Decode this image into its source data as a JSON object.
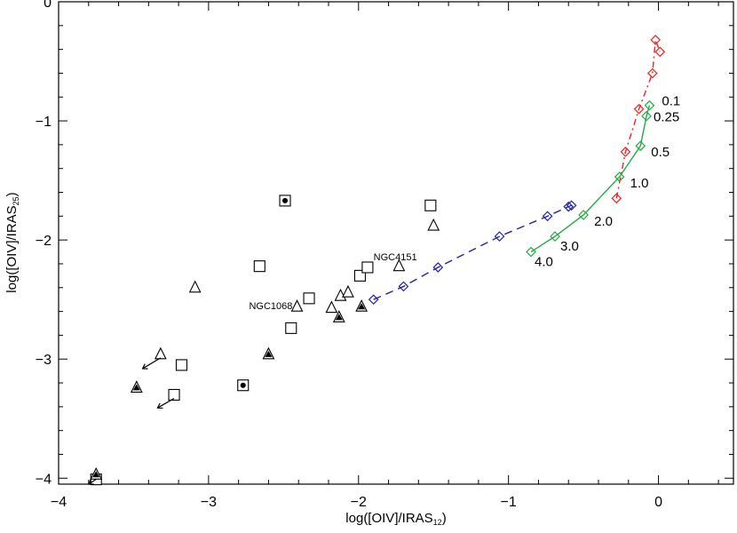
{
  "chart_data": {
    "type": "scatter",
    "xlabel": "log([OIV]/IRAS",
    "xlabel_sub": "12",
    "xlabel_end": ")",
    "ylabel": "log([OIV]/IRAS",
    "ylabel_sub": "25",
    "ylabel_end": ")",
    "xlim": [
      -4,
      0.5
    ],
    "ylim": [
      -4.05,
      0
    ],
    "xticks": [
      -4,
      -3,
      -2,
      -1,
      0
    ],
    "yticks": [
      0,
      -1,
      -2,
      -3,
      -4
    ],
    "xtick_labels": [
      "−4",
      "−3",
      "−2",
      "−1",
      "0"
    ],
    "ytick_labels": [
      "0",
      "−1",
      "−2",
      "−3",
      "−4"
    ],
    "grid": false,
    "squares": [
      [
        -2.66,
        -2.22
      ],
      [
        -2.33,
        -2.49
      ],
      [
        -2.45,
        -2.74
      ],
      [
        -1.99,
        -2.3
      ],
      [
        -1.94,
        -2.23
      ],
      [
        -1.52,
        -1.71
      ],
      [
        -3.18,
        -3.05
      ],
      [
        -3.23,
        -3.3
      ],
      [
        -3.75,
        -4.01
      ]
    ],
    "squares_filled": [
      [
        -2.49,
        -1.67
      ],
      [
        -2.77,
        -3.22
      ]
    ],
    "triangles": [
      [
        -3.09,
        -2.4
      ],
      [
        -2.41,
        -2.56
      ],
      [
        -2.18,
        -2.57
      ],
      [
        -2.12,
        -2.47
      ],
      [
        -2.07,
        -2.44
      ],
      [
        -1.73,
        -2.22
      ],
      [
        -1.5,
        -1.88
      ],
      [
        -3.32,
        -2.96
      ]
    ],
    "triangles_filled": [
      [
        -3.48,
        -3.24
      ],
      [
        -2.6,
        -2.96
      ],
      [
        -2.13,
        -2.65
      ],
      [
        -1.98,
        -2.56
      ],
      [
        -3.75,
        -3.97
      ]
    ],
    "upper_limits": [
      {
        "from": [
          -3.32,
          -2.99
        ],
        "to": [
          -3.44,
          -3.08
        ]
      },
      {
        "from": [
          -3.23,
          -3.33
        ],
        "to": [
          -3.34,
          -3.41
        ]
      },
      {
        "from": [
          -3.75,
          -4.01
        ],
        "to": [
          -3.8,
          -4.05
        ]
      }
    ],
    "annotations": [
      {
        "text": "NGC4151",
        "x": -1.9,
        "y": -2.17
      },
      {
        "text": "NGC1068",
        "x": -2.73,
        "y": -2.58
      }
    ],
    "series": [
      {
        "color": "#2222aa",
        "style": "dashed",
        "marker": "diamond",
        "x": [
          -1.9,
          -1.7,
          -1.47,
          -1.06,
          -0.74,
          -0.6,
          -0.58
        ],
        "y": [
          -2.5,
          -2.39,
          -2.23,
          -1.97,
          -1.8,
          -1.72,
          -1.71
        ]
      },
      {
        "color": "#22aa44",
        "style": "solid",
        "marker": "diamond",
        "x": [
          -0.85,
          -0.69,
          -0.5,
          -0.26,
          -0.12,
          -0.08,
          -0.06
        ],
        "y": [
          -2.1,
          -1.97,
          -1.79,
          -1.47,
          -1.21,
          -0.96,
          -0.87
        ],
        "labels": [
          "4.0",
          "3.0",
          "2.0",
          "1.0",
          "0.5",
          "0.25",
          "0.1"
        ]
      },
      {
        "color": "#ee2222",
        "style": "dashdot",
        "marker": "diamond",
        "x": [
          -0.28,
          -0.22,
          -0.13,
          -0.04,
          -0.02,
          0.01
        ],
        "y": [
          -1.65,
          -1.26,
          -0.9,
          -0.6,
          -0.32,
          -0.42
        ]
      }
    ]
  }
}
